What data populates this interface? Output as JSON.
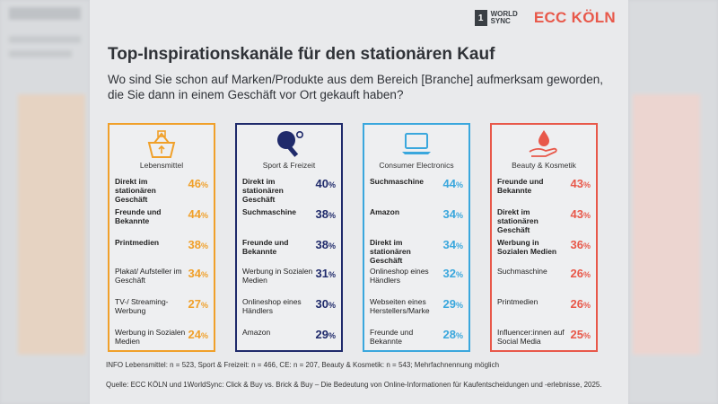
{
  "brand": {
    "worldsync_mark": "1",
    "worldsync_text_line1": "WORLD",
    "worldsync_text_line2": "SYNC",
    "ecc": "ECC KÖLN"
  },
  "title": "Top-Inspirationskanäle für den stationären Kauf",
  "subtitle": "Wo sind Sie schon auf Marken/Produkte aus dem Bereich [Branche] aufmerksam geworden, die Sie dann in einem Geschäft vor Ort gekauft haben?",
  "pct_sign": "%",
  "info": "INFO  Lebensmittel: n = 523, Sport & Freizeit: n = 466, CE: n = 207, Beauty & Kosmetik: n = 543; Mehrfachnennung möglich",
  "source": "Quelle: ECC KÖLN und 1WorldSync: Click & Buy vs. Brick & Buy – Die Bedeutung von Online-Informationen für Kaufentscheidungen und -erlebnisse, 2025.",
  "colors": {
    "lebensmittel": "#f0a02a",
    "sport": "#1f2a6b",
    "ce": "#3aa7dd",
    "beauty": "#e8584a"
  },
  "chart_data": {
    "type": "table",
    "unit": "%",
    "groups": [
      {
        "name": "Lebensmittel",
        "icon": "basket-icon",
        "items": [
          {
            "label": "Direkt im stationären Geschäft",
            "value": 46,
            "bold": true
          },
          {
            "label": "Freunde und Bekannte",
            "value": 44,
            "bold": true
          },
          {
            "label": "Printmedien",
            "value": 38,
            "bold": true
          },
          {
            "label": "Plakat/ Aufsteller im Geschäft",
            "value": 34,
            "bold": false
          },
          {
            "label": "TV-/ Streaming-Werbung",
            "value": 27,
            "bold": false
          },
          {
            "label": "Werbung in Sozialen Medien",
            "value": 24,
            "bold": false
          }
        ]
      },
      {
        "name": "Sport & Freizeit",
        "icon": "table-tennis-icon",
        "items": [
          {
            "label": "Direkt im stationären Geschäft",
            "value": 40,
            "bold": true
          },
          {
            "label": "Suchmaschine",
            "value": 38,
            "bold": true
          },
          {
            "label": "Freunde und Bekannte",
            "value": 38,
            "bold": true
          },
          {
            "label": "Werbung in Sozialen Medien",
            "value": 31,
            "bold": false
          },
          {
            "label": "Onlineshop eines Händlers",
            "value": 30,
            "bold": false
          },
          {
            "label": "Amazon",
            "value": 29,
            "bold": false
          }
        ]
      },
      {
        "name": "Consumer Electronics",
        "icon": "laptop-icon",
        "items": [
          {
            "label": "Suchmaschine",
            "value": 44,
            "bold": true
          },
          {
            "label": "Amazon",
            "value": 34,
            "bold": true
          },
          {
            "label": "Direkt im stationären Geschäft",
            "value": 34,
            "bold": true
          },
          {
            "label": "Onlineshop eines Händlers",
            "value": 32,
            "bold": false
          },
          {
            "label": "Webseiten eines Herstellers/Marke",
            "value": 29,
            "bold": false
          },
          {
            "label": "Freunde und Bekannte",
            "value": 28,
            "bold": false
          }
        ]
      },
      {
        "name": "Beauty & Kosmetik",
        "icon": "hand-drop-icon",
        "items": [
          {
            "label": "Freunde und Bekannte",
            "value": 43,
            "bold": true
          },
          {
            "label": "Direkt im stationären Geschäft",
            "value": 43,
            "bold": true
          },
          {
            "label": "Werbung in Sozialen Medien",
            "value": 36,
            "bold": true
          },
          {
            "label": "Suchmaschine",
            "value": 26,
            "bold": false
          },
          {
            "label": "Printmedien",
            "value": 26,
            "bold": false
          },
          {
            "label": "Influencer:innen auf Social Media",
            "value": 25,
            "bold": false
          }
        ]
      }
    ]
  }
}
